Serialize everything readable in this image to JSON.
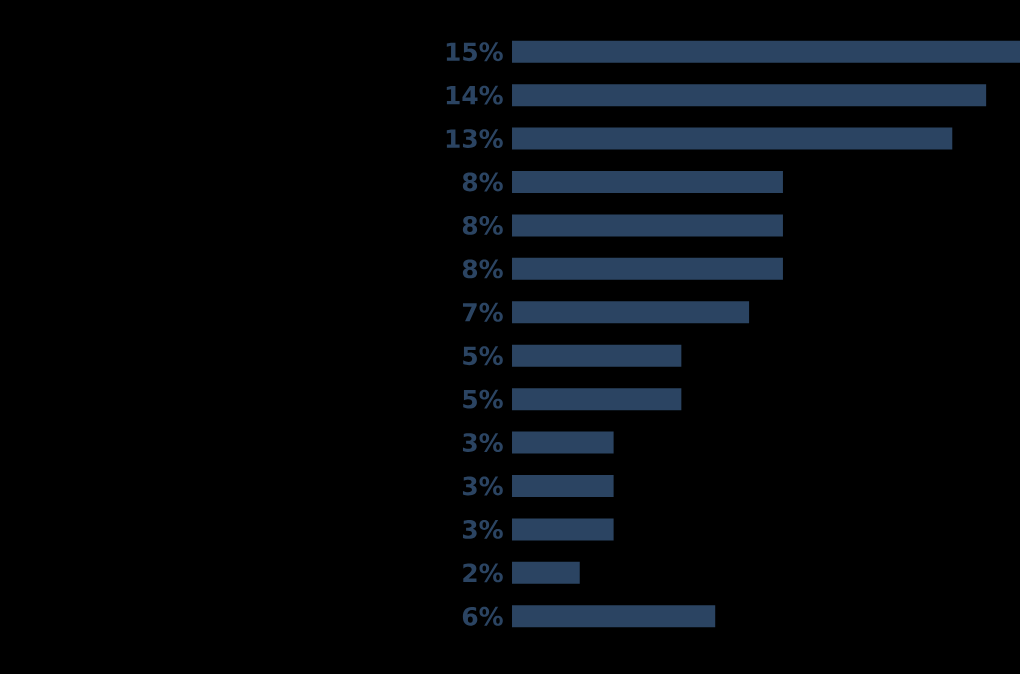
{
  "chart_data": {
    "type": "bar",
    "orientation": "horizontal",
    "categories": [
      null,
      null,
      null,
      null,
      null,
      null,
      null,
      null,
      null,
      null,
      null,
      null,
      null,
      null
    ],
    "values": [
      15,
      14,
      13,
      8,
      8,
      8,
      7,
      5,
      5,
      3,
      3,
      3,
      2,
      6
    ],
    "value_labels": [
      "15%",
      "14%",
      "13%",
      "8%",
      "8%",
      "8%",
      "7%",
      "5%",
      "5%",
      "3%",
      "3%",
      "3%",
      "2%",
      "6%"
    ],
    "color": "#2b4462",
    "xlim": [
      0,
      15
    ]
  }
}
